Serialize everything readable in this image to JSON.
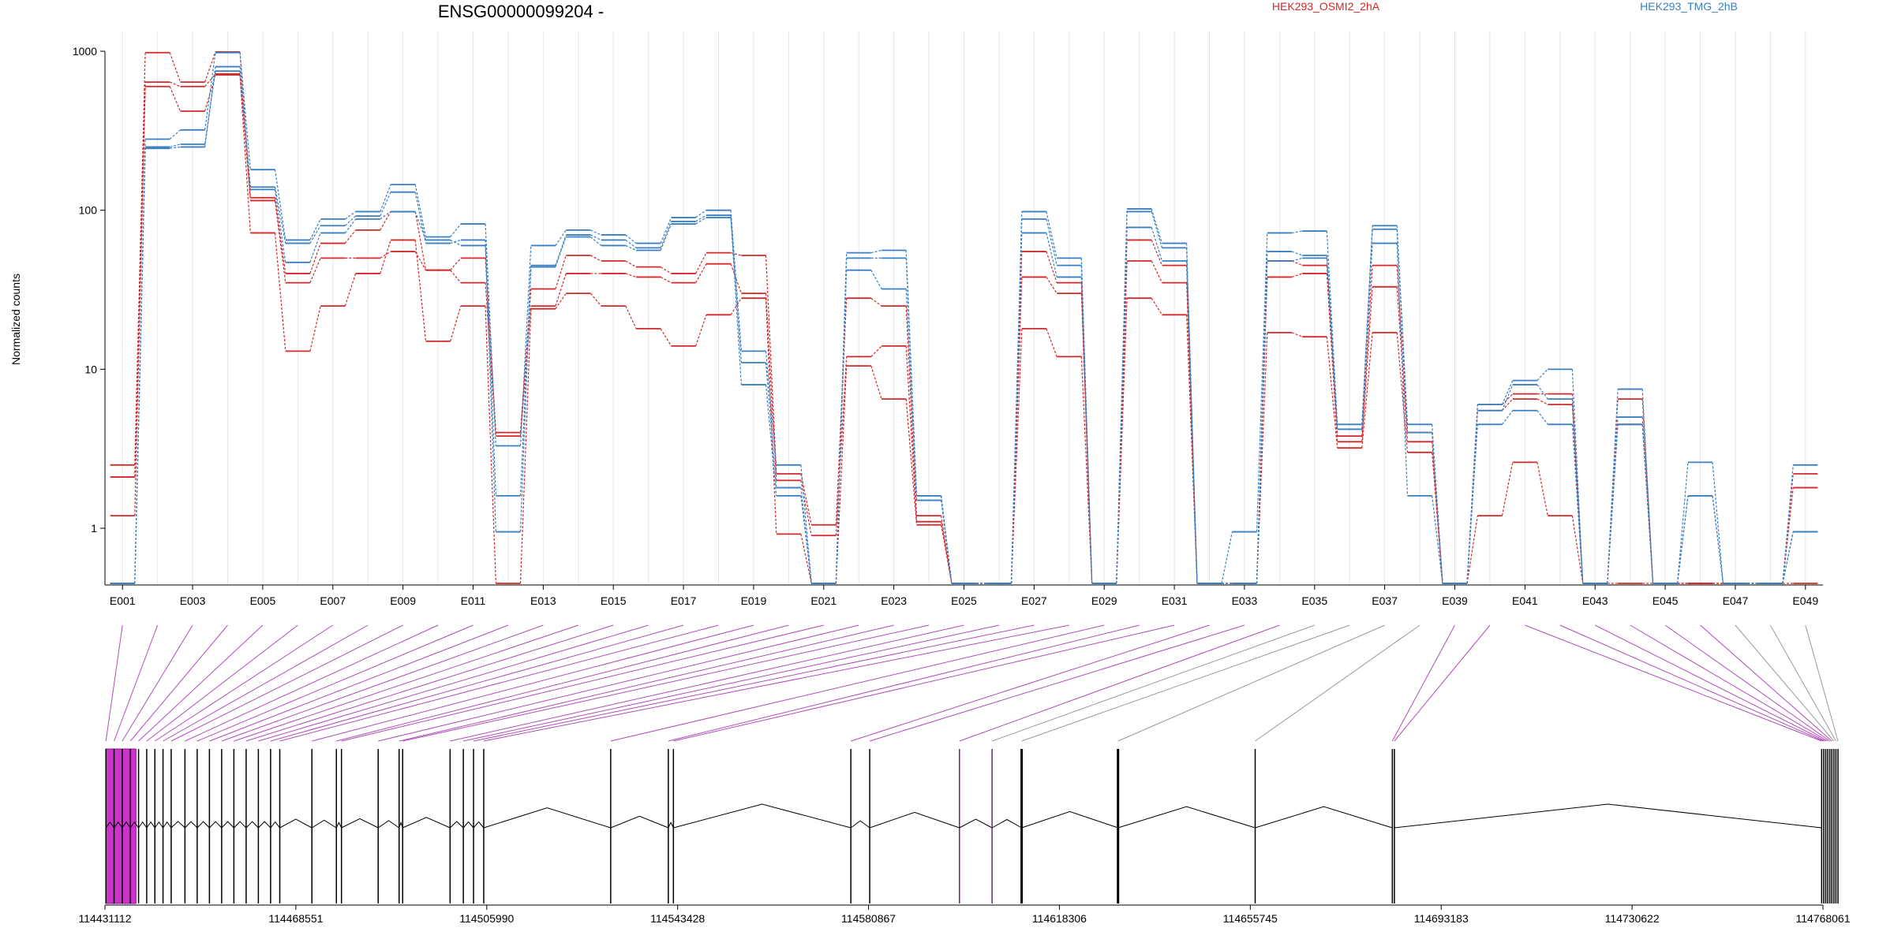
{
  "chart_data": {
    "type": "line",
    "title": "ENSG00000099204 -",
    "ylabel": "Normalized counts",
    "yscale": "log",
    "ylim": [
      0.45,
      1000
    ],
    "yticks": [
      1,
      10,
      100,
      1000
    ],
    "ytick_labels": [
      "1",
      "10",
      "100",
      "1000"
    ],
    "exon_tick_labels": [
      "E001",
      "E003",
      "E005",
      "E007",
      "E009",
      "E011",
      "E013",
      "E015",
      "E017",
      "E019",
      "E021",
      "E023",
      "E025",
      "E027",
      "E029",
      "E031",
      "E033",
      "E035",
      "E037",
      "E039",
      "E041",
      "E043",
      "E045",
      "E047",
      "E049"
    ],
    "exon_count": 49,
    "legend": [
      {
        "name": "HEK293_OSMI2_2hA",
        "color": "#d62728"
      },
      {
        "name": "HEK293_TMG_2hB",
        "color": "#3a7fc0"
      }
    ],
    "series": [
      {
        "group": "HEK293_OSMI2_2hA",
        "color": "#d62728",
        "values": [
          2.5,
          980,
          640,
          990,
          120,
          40,
          62,
          75,
          98,
          42,
          50,
          4,
          32,
          52,
          48,
          44,
          40,
          54,
          52,
          2.2,
          1.05,
          28,
          25,
          1.2,
          0.45,
          0.45,
          55,
          35,
          0.45,
          65,
          45,
          0.45,
          0.45,
          48,
          45,
          3.8,
          45,
          4,
          0.45,
          6,
          7,
          7,
          0.45,
          6.5,
          0.45,
          0.45,
          0.45,
          0.45,
          1.8
        ]
      },
      {
        "group": "HEK293_OSMI2_2hA",
        "color": "#d62728",
        "values": [
          2.1,
          640,
          600,
          720,
          115,
          35,
          50,
          50,
          55,
          42,
          35,
          3.8,
          25,
          40,
          40,
          38,
          35,
          46,
          30,
          2,
          0.9,
          12,
          14,
          1.1,
          0.45,
          0.45,
          38,
          30,
          0.45,
          48,
          35,
          0.45,
          0.45,
          38,
          40,
          3.5,
          33,
          3.5,
          0.45,
          5.5,
          6.5,
          6,
          0.45,
          4.5,
          0.45,
          0.45,
          0.45,
          0.45,
          2.2
        ]
      },
      {
        "group": "HEK293_OSMI2_2hA",
        "color": "#d62728",
        "values": [
          1.2,
          600,
          420,
          710,
          72,
          13,
          25,
          40,
          65,
          15,
          25,
          0.45,
          24,
          30,
          25,
          18,
          14,
          22,
          28,
          0.92,
          0.45,
          10.5,
          6.5,
          1.05,
          0.45,
          0.45,
          18,
          12,
          0.45,
          28,
          22,
          0.45,
          0.45,
          17,
          16,
          3.2,
          17,
          3,
          0.45,
          1.2,
          2.6,
          1.2,
          0.45,
          0.45,
          0.45,
          0.45,
          0.45,
          0.45,
          0.45
        ]
      },
      {
        "group": "HEK293_TMG_2hB",
        "color": "#3a7fc0",
        "values": [
          0.45,
          280,
          320,
          980,
          180,
          65,
          88,
          98,
          145,
          68,
          82,
          3.3,
          60,
          75,
          70,
          62,
          90,
          100,
          13,
          2.5,
          0.45,
          54,
          56,
          1.6,
          0.45,
          0.45,
          98,
          50,
          0.45,
          102,
          62,
          0.45,
          0.95,
          72,
          74,
          4.5,
          80,
          4.5,
          0.45,
          6,
          8.5,
          10,
          0.45,
          7.5,
          0.45,
          2.6,
          0.45,
          0.45,
          2.5
        ]
      },
      {
        "group": "HEK293_TMG_2hB",
        "color": "#3a7fc0",
        "values": [
          0.45,
          250,
          260,
          750,
          140,
          62,
          80,
          92,
          130,
          62,
          65,
          1.6,
          45,
          70,
          65,
          58,
          85,
          93,
          11,
          1.8,
          0.45,
          50,
          50,
          1.6,
          0.45,
          0.45,
          88,
          45,
          0.45,
          98,
          58,
          0.45,
          0.45,
          55,
          52,
          4.2,
          76,
          4,
          0.45,
          5.5,
          8,
          6.5,
          0.45,
          5,
          0.45,
          1.6,
          0.45,
          0.45,
          0.95
        ]
      },
      {
        "group": "HEK293_TMG_2hB",
        "color": "#3a7fc0",
        "values": [
          0.45,
          245,
          250,
          800,
          135,
          47,
          72,
          88,
          98,
          65,
          60,
          0.95,
          44,
          68,
          60,
          56,
          82,
          90,
          8,
          1.6,
          0.45,
          42,
          32,
          1.5,
          0.45,
          0.45,
          72,
          38,
          0.45,
          78,
          48,
          0.45,
          0.45,
          48,
          50,
          4.2,
          62,
          1.6,
          0.45,
          4.5,
          5.5,
          4.5,
          0.45,
          4.5,
          0.45,
          1.6,
          0.45,
          0.45,
          0.95
        ]
      }
    ],
    "genomic_axis": {
      "tick_labels": [
        "114431112",
        "114468551",
        "114505990",
        "114543428",
        "114580867",
        "114618306",
        "114655745",
        "114693183",
        "114730622",
        "114768061"
      ],
      "start": 114431112,
      "end": 114768061
    }
  },
  "colors": {
    "osmi": "#d62728",
    "tmg": "#3a7fc0",
    "highlight": "#cc33cc",
    "connector_plain": "#9a9a9a",
    "connector_highlight": "#b04cb8",
    "grid": "#e6e6f0"
  }
}
